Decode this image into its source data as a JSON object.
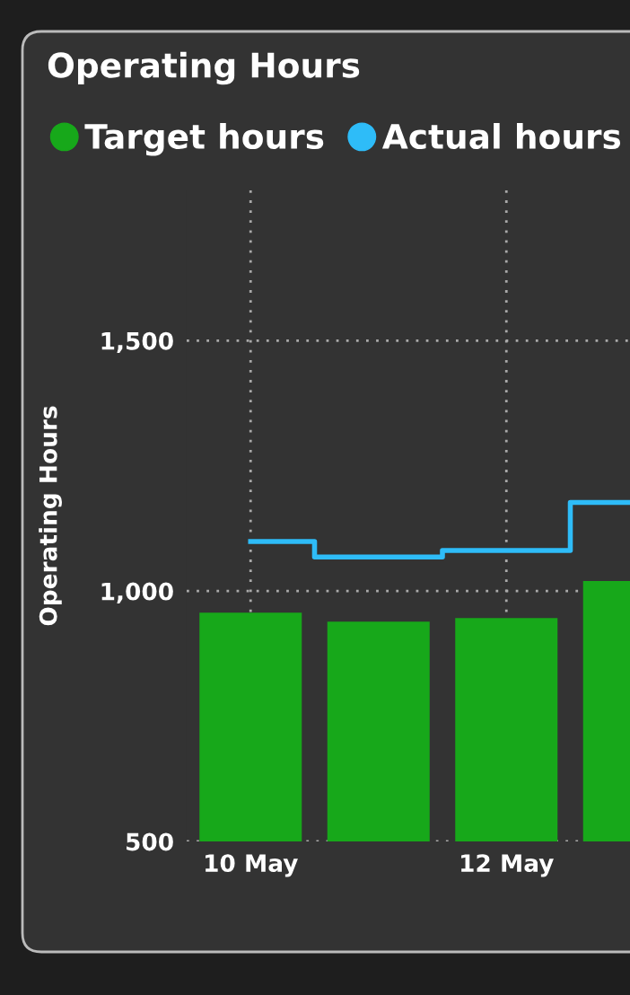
{
  "chart_data": {
    "type": "bar",
    "title": "Operating Hours",
    "ylabel": "Operating Hours",
    "categories": [
      "10 May",
      null,
      "12 May",
      null
    ],
    "series": [
      {
        "name": "Target hours",
        "color": "#17a81a",
        "values": [
          957,
          939,
          946,
          1020
        ]
      },
      {
        "name": "Actual hours",
        "type": "step",
        "color": "#2ebcf8",
        "values": [
          1099,
          1068,
          1081,
          1177
        ]
      }
    ],
    "ylim": [
      500,
      1800
    ],
    "yticks": [
      500,
      {
        "value": 1000,
        "label": "1,000"
      },
      {
        "value": 1500,
        "label": "1,500"
      }
    ],
    "grid": true,
    "legend": "top left"
  }
}
